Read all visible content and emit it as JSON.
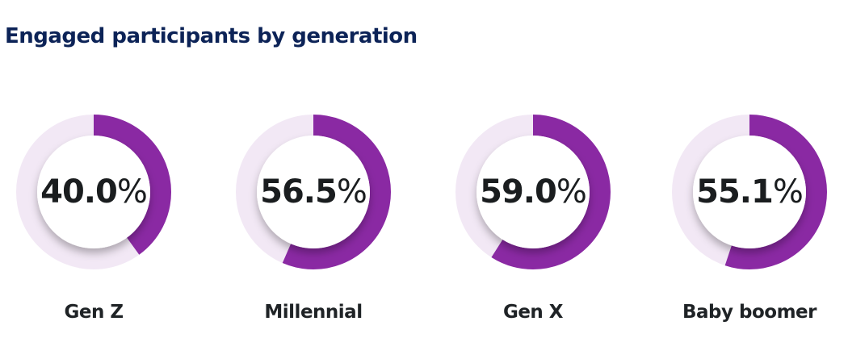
{
  "title": "Engaged participants by generation",
  "colors": {
    "title": "#0c2357",
    "arc": "#8a29a3",
    "track": "#f2e8f5",
    "text": "#1a1d1f"
  },
  "items": [
    {
      "label": "Gen Z",
      "value_num": "40.0",
      "value_pct": "%"
    },
    {
      "label": "Millennial",
      "value_num": "56.5",
      "value_pct": "%"
    },
    {
      "label": "Gen X",
      "value_num": "59.0",
      "value_pct": "%"
    },
    {
      "label": "Baby boomer",
      "value_num": "55.1",
      "value_pct": "%"
    }
  ],
  "chart_data": {
    "type": "pie",
    "subtype": "donut",
    "title": "Engaged participants by generation",
    "categories": [
      "Gen Z",
      "Millennial",
      "Gen X",
      "Baby boomer"
    ],
    "values": [
      40.0,
      56.5,
      59.0,
      55.1
    ],
    "unit": "%",
    "max": 100
  }
}
